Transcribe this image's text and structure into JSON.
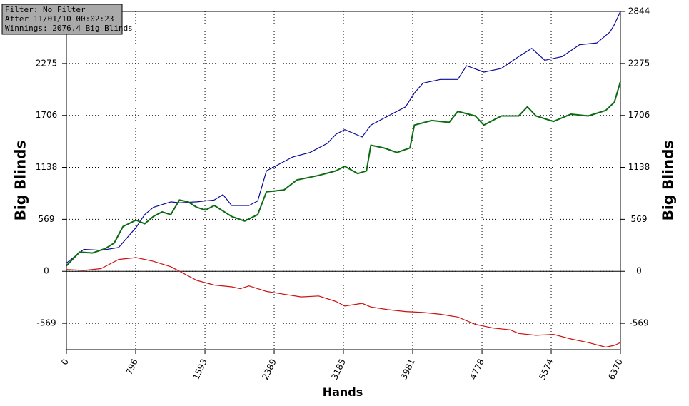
{
  "chart_data": {
    "type": "line",
    "info": [
      "Filter: No Filter",
      "After 11/01/10 00:02:23",
      "Winnings: 2076.4 Big Blinds"
    ],
    "xlabel": "Hands",
    "ylabel": "Big Blinds",
    "y2label": "Big Blinds",
    "xlim": [
      0,
      6370
    ],
    "xticks": [
      0,
      796,
      1593,
      2389,
      3185,
      3981,
      4778,
      5574,
      6370
    ],
    "ylim": [
      -857,
      2844
    ],
    "yticks": [
      -569,
      0,
      569,
      1138,
      1706,
      2275,
      2844
    ],
    "y2lim": [
      -857,
      2844
    ],
    "y2ticks": [
      -569,
      0,
      569,
      1138,
      1706,
      2275,
      2844
    ],
    "grid": true,
    "series": [
      {
        "color": "#0a0a99",
        "x": [
          0,
          200,
          400,
          600,
          800,
          900,
          1000,
          1200,
          1300,
          1500,
          1700,
          1800,
          1900,
          2100,
          2200,
          2300,
          2400,
          2600,
          2800,
          3000,
          3100,
          3200,
          3400,
          3500,
          3700,
          3900,
          4000,
          4100,
          4300,
          4500,
          4600,
          4800,
          5000,
          5200,
          5350,
          5500,
          5700,
          5900,
          6100,
          6250,
          6300,
          6370
        ],
        "values": [
          90,
          240,
          230,
          260,
          480,
          620,
          700,
          760,
          750,
          760,
          780,
          840,
          720,
          720,
          770,
          1100,
          1150,
          1250,
          1300,
          1400,
          1500,
          1550,
          1470,
          1600,
          1700,
          1800,
          1950,
          2060,
          2100,
          2100,
          2250,
          2180,
          2220,
          2350,
          2440,
          2310,
          2350,
          2480,
          2500,
          2620,
          2700,
          2844
        ]
      },
      {
        "color": "#0b6b12",
        "x": [
          0,
          150,
          300,
          450,
          550,
          650,
          800,
          900,
          1000,
          1100,
          1200,
          1300,
          1400,
          1500,
          1600,
          1700,
          1800,
          1900,
          2050,
          2200,
          2300,
          2500,
          2650,
          2900,
          3100,
          3200,
          3350,
          3450,
          3500,
          3650,
          3800,
          3950,
          4000,
          4200,
          4400,
          4500,
          4700,
          4800,
          5000,
          5200,
          5300,
          5400,
          5600,
          5800,
          6000,
          6200,
          6300,
          6370
        ],
        "values": [
          60,
          210,
          200,
          250,
          310,
          490,
          560,
          520,
          600,
          650,
          620,
          780,
          760,
          700,
          670,
          720,
          660,
          600,
          550,
          620,
          870,
          890,
          1000,
          1050,
          1100,
          1150,
          1070,
          1100,
          1380,
          1350,
          1300,
          1350,
          1600,
          1650,
          1630,
          1750,
          1700,
          1600,
          1700,
          1700,
          1800,
          1700,
          1640,
          1720,
          1700,
          1760,
          1850,
          2076.4
        ]
      },
      {
        "color": "#cc1111",
        "x": [
          0,
          200,
          400,
          500,
          600,
          800,
          1000,
          1200,
          1300,
          1500,
          1700,
          1900,
          2000,
          2100,
          2300,
          2500,
          2700,
          2900,
          3100,
          3200,
          3400,
          3500,
          3700,
          3900,
          4100,
          4300,
          4500,
          4700,
          4900,
          5100,
          5200,
          5400,
          5600,
          5800,
          6000,
          6200,
          6300,
          6370
        ],
        "values": [
          20,
          10,
          30,
          80,
          130,
          150,
          110,
          50,
          0,
          -100,
          -150,
          -170,
          -190,
          -160,
          -220,
          -250,
          -280,
          -270,
          -330,
          -380,
          -350,
          -390,
          -420,
          -440,
          -450,
          -470,
          -500,
          -580,
          -620,
          -640,
          -680,
          -700,
          -690,
          -740,
          -780,
          -830,
          -810,
          -780
        ]
      }
    ]
  }
}
